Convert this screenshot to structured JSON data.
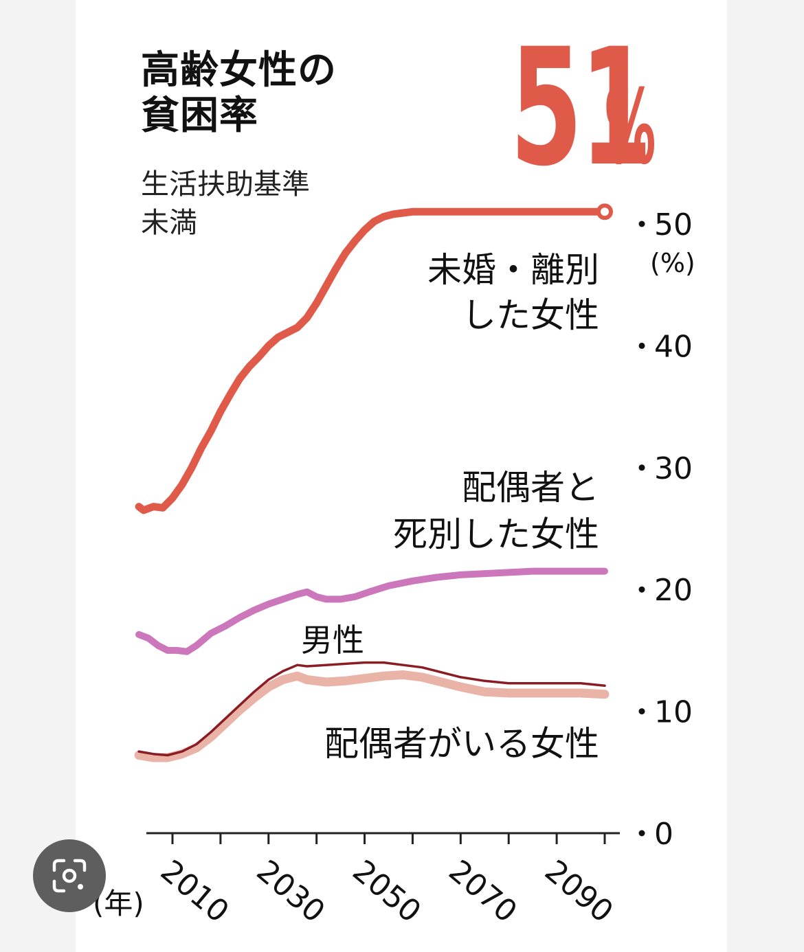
{
  "title_line1": "高齢女性の",
  "title_line2": "貧困率",
  "subtitle_line1": "生活扶助基準",
  "subtitle_line2": "未満",
  "headline_number": "51",
  "headline_unit": "%",
  "unit": "(%)",
  "year_unit": "(年)",
  "colors": {
    "unmarried": "#e05a4a",
    "widowed": "#cc77bb",
    "male": "#8a1c24",
    "married": "#eab3a7",
    "headline": "#e05a4a"
  },
  "overlay_icon": "google-lens-icon",
  "chart_data": {
    "type": "line",
    "title": "高齢女性の貧困率",
    "subtitle": "生活扶助基準未満",
    "ylabel": "(%)",
    "xlabel": "(年)",
    "xlim": [
      2003,
      2102
    ],
    "ylim": [
      0,
      50
    ],
    "yticks": [
      0,
      10,
      20,
      30,
      40,
      50
    ],
    "xtick_labels": [
      2010,
      2030,
      2050,
      2070,
      2090
    ],
    "minor_xticks": [
      2010,
      2020,
      2030,
      2040,
      2050,
      2060,
      2070,
      2080,
      2090,
      2100
    ],
    "grid": false,
    "series": [
      {
        "name_line1": "未婚・離別",
        "name_line2": "した女性",
        "key": "unmarried",
        "x": [
          2003,
          2004,
          2006,
          2008,
          2010,
          2012,
          2014,
          2016,
          2018,
          2020,
          2022,
          2024,
          2026,
          2028,
          2030,
          2032,
          2034,
          2036,
          2038,
          2040,
          2042,
          2044,
          2046,
          2048,
          2050,
          2052,
          2054,
          2056,
          2058,
          2060,
          2062,
          2064,
          2066,
          2068,
          2070,
          2075,
          2080,
          2085,
          2090,
          2095,
          2100
        ],
        "values": [
          26.8,
          26.5,
          26.8,
          26.7,
          27.5,
          28.6,
          30.0,
          31.6,
          33.0,
          34.6,
          36.0,
          37.3,
          38.3,
          39.1,
          40.0,
          40.7,
          41.1,
          41.5,
          42.3,
          43.5,
          44.9,
          46.3,
          47.6,
          48.6,
          49.5,
          50.2,
          50.6,
          50.8,
          50.9,
          51.0,
          51.0,
          51.0,
          51.0,
          51.0,
          51.0,
          51.0,
          51.0,
          51.0,
          51.0,
          51.0,
          51.0
        ],
        "end_marker": true
      },
      {
        "name_line1": "配偶者と",
        "name_line2": "死別した女性",
        "key": "widowed",
        "x": [
          2003,
          2005,
          2007,
          2009,
          2011,
          2013,
          2015,
          2018,
          2021,
          2024,
          2027,
          2030,
          2033,
          2036,
          2038,
          2040,
          2042,
          2045,
          2048,
          2051,
          2055,
          2060,
          2065,
          2070,
          2075,
          2080,
          2085,
          2090,
          2095,
          2100
        ],
        "values": [
          16.3,
          16.0,
          15.4,
          15.0,
          15.0,
          14.9,
          15.4,
          16.4,
          17.0,
          17.7,
          18.3,
          18.8,
          19.2,
          19.6,
          19.8,
          19.4,
          19.2,
          19.2,
          19.4,
          19.8,
          20.3,
          20.7,
          21.0,
          21.2,
          21.3,
          21.4,
          21.5,
          21.5,
          21.5,
          21.5
        ]
      },
      {
        "name": "男性",
        "key": "male",
        "x": [
          2003,
          2006,
          2009,
          2012,
          2015,
          2018,
          2021,
          2024,
          2027,
          2030,
          2033,
          2036,
          2038,
          2042,
          2046,
          2050,
          2054,
          2058,
          2062,
          2066,
          2070,
          2075,
          2080,
          2085,
          2090,
          2095,
          2100
        ],
        "values": [
          6.7,
          6.5,
          6.4,
          6.7,
          7.3,
          8.3,
          9.4,
          10.5,
          11.6,
          12.6,
          13.3,
          13.8,
          13.7,
          13.8,
          13.9,
          14.0,
          14.0,
          13.8,
          13.6,
          13.2,
          12.8,
          12.5,
          12.3,
          12.3,
          12.3,
          12.3,
          12.1
        ]
      },
      {
        "name": "配偶者がいる女性",
        "key": "married",
        "x": [
          2003,
          2006,
          2009,
          2012,
          2015,
          2018,
          2021,
          2024,
          2027,
          2030,
          2033,
          2036,
          2038,
          2042,
          2046,
          2050,
          2054,
          2058,
          2062,
          2066,
          2070,
          2075,
          2080,
          2085,
          2090,
          2095,
          2100
        ],
        "values": [
          6.4,
          6.2,
          6.2,
          6.5,
          7.0,
          7.9,
          9.0,
          10.1,
          11.1,
          12.0,
          12.6,
          12.9,
          12.6,
          12.4,
          12.5,
          12.7,
          12.9,
          13.0,
          12.8,
          12.4,
          12.0,
          11.6,
          11.5,
          11.5,
          11.5,
          11.5,
          11.4
        ]
      }
    ]
  }
}
